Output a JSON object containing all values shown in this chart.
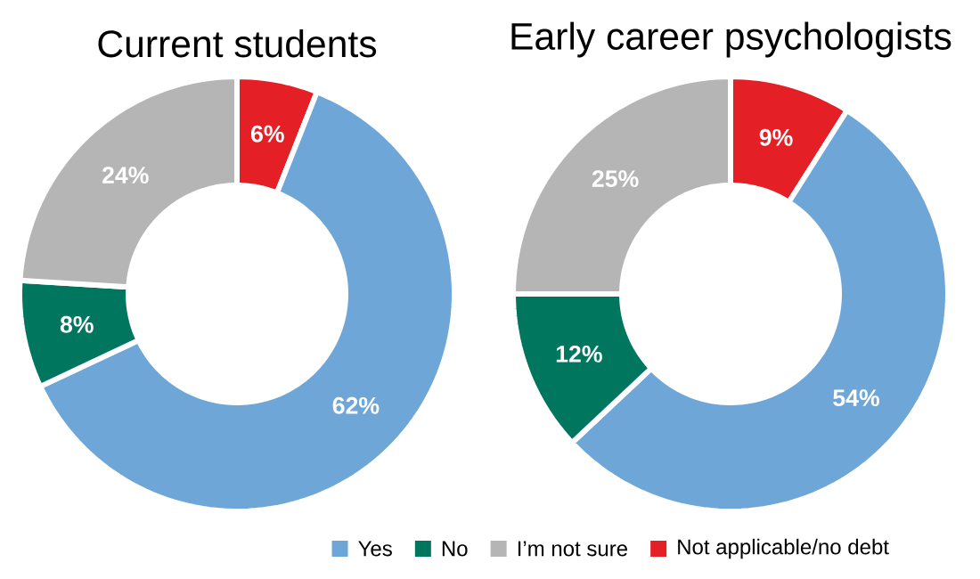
{
  "chart_data": [
    {
      "type": "donut",
      "title": "Current students",
      "categories": [
        "Yes",
        "No",
        "I’m not sure",
        "Not applicable/no debt"
      ],
      "values": [
        62,
        8,
        24,
        6
      ],
      "value_labels": [
        "62%",
        "8%",
        "24%",
        "6%"
      ],
      "colors": [
        "#6ea6d8",
        "#00765f",
        "#b5b5b5",
        "#e41f26"
      ],
      "legend": "bottom"
    },
    {
      "type": "donut",
      "title": "Early career psychologists",
      "categories": [
        null,
        null,
        null,
        null
      ],
      "values": [
        54,
        12,
        25,
        9
      ],
      "value_labels": [
        "54%",
        "12%",
        "25%",
        "9%"
      ],
      "colors": [
        "#6ea6d8",
        "#00765f",
        "#b5b5b5",
        "#e41f26"
      ]
    }
  ]
}
